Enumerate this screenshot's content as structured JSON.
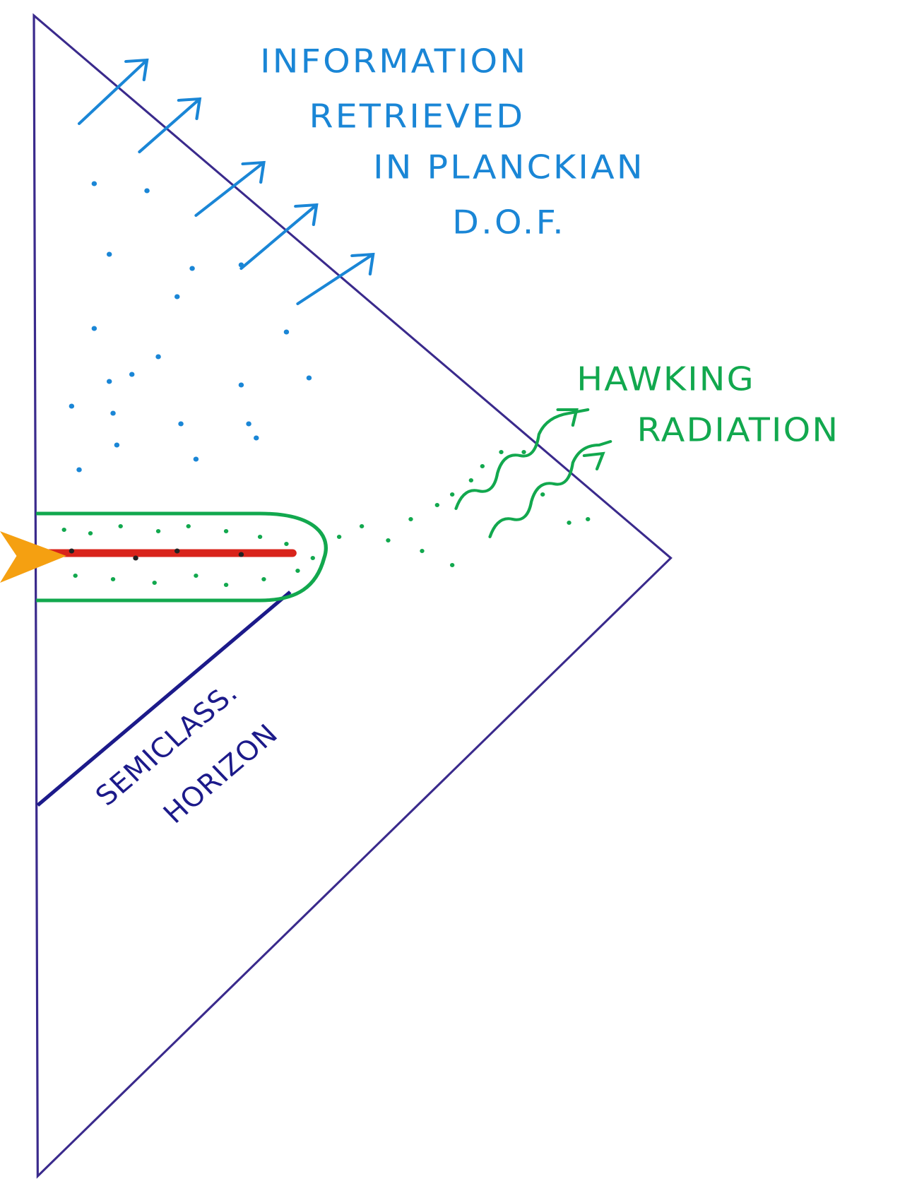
{
  "labels": {
    "information": [
      "INFORMATION",
      "RETRIEVED",
      "IN PLANCKIAN",
      "D.O.F."
    ],
    "hawking": [
      "HAWKING",
      "RADIATION"
    ],
    "horizon": [
      "SEMICLASS.",
      "HORIZON"
    ]
  }
}
